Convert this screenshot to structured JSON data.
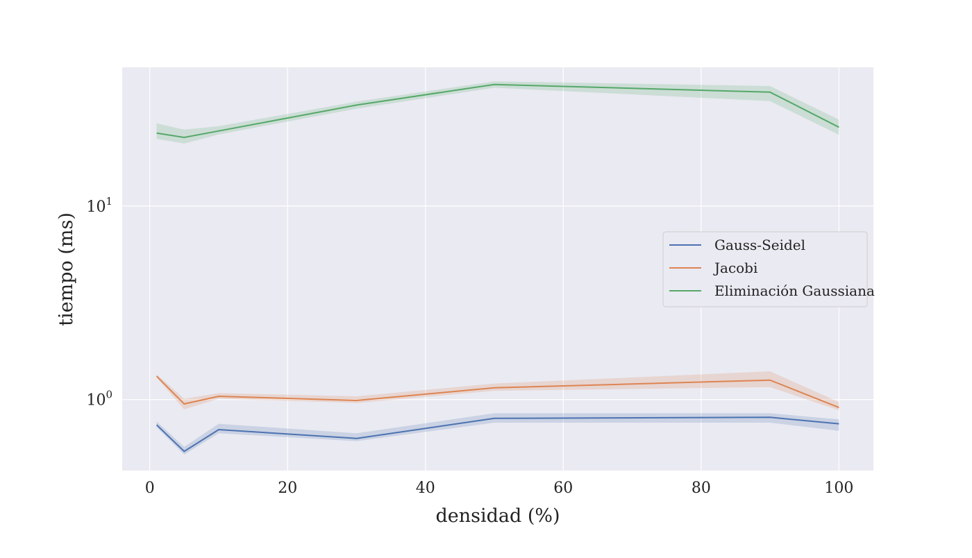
{
  "chart_data": {
    "type": "line",
    "title": "",
    "xlabel": "densidad (%)",
    "ylabel": "tiempo (ms)",
    "xlim": [
      -4,
      105
    ],
    "ylim": [
      0.43,
      52
    ],
    "yscale": "log",
    "grid": true,
    "background": "#eaeaf2",
    "legend_position": "center-right",
    "x_ticks": [
      0,
      20,
      40,
      60,
      80,
      100
    ],
    "x_tick_labels": [
      "0",
      "20",
      "40",
      "60",
      "80",
      "100"
    ],
    "y_ticks": [
      1,
      10
    ],
    "y_tick_labels": [
      {
        "base": "10",
        "exp": "0"
      },
      {
        "base": "10",
        "exp": "1"
      }
    ],
    "x": [
      1,
      5,
      10,
      30,
      50,
      90,
      100
    ],
    "series": [
      {
        "name": "Gauss-Seidel",
        "color": "#4c72b0",
        "values": [
          0.74,
          0.54,
          0.7,
          0.63,
          0.8,
          0.81,
          0.75
        ],
        "lower": [
          0.72,
          0.52,
          0.67,
          0.61,
          0.76,
          0.76,
          0.69
        ],
        "upper": [
          0.77,
          0.57,
          0.75,
          0.67,
          0.85,
          0.85,
          0.79
        ]
      },
      {
        "name": "Jacobi",
        "color": "#dd8452",
        "values": [
          1.32,
          0.95,
          1.04,
          0.99,
          1.15,
          1.26,
          0.91
        ],
        "lower": [
          1.3,
          0.89,
          1.01,
          0.96,
          1.11,
          1.16,
          0.88
        ],
        "upper": [
          1.35,
          1.01,
          1.08,
          1.04,
          1.21,
          1.4,
          0.97
        ]
      },
      {
        "name": "Eliminación Gaussiana",
        "color": "#55a868",
        "values": [
          23.8,
          22.6,
          24.4,
          33.2,
          42.4,
          38.7,
          25.5
        ],
        "lower": [
          22.2,
          21.0,
          23.4,
          31.8,
          40.8,
          34.8,
          23.3
        ],
        "upper": [
          26.7,
          24.8,
          25.8,
          34.6,
          44.0,
          41.6,
          27.9
        ]
      }
    ]
  }
}
